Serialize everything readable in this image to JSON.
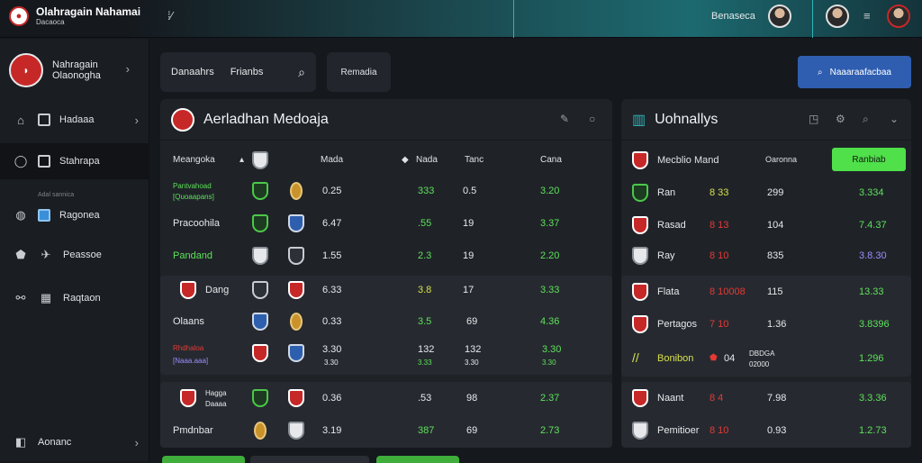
{
  "topbar": {
    "brand_title": "Olahragain Nahamai",
    "brand_sub": "Dacaoca",
    "label": "Benaseca"
  },
  "sidebar": {
    "profile_line1": "Nahragain",
    "profile_line2": "Olaonogha",
    "items": [
      {
        "label": "Hadaaa"
      },
      {
        "label": "Stahrapa"
      },
      {
        "label": "Ragonea",
        "caption": "Adal sannica"
      },
      {
        "label": "Peassoe"
      },
      {
        "label": "Raqtaon"
      },
      {
        "label": "Aonanc"
      }
    ]
  },
  "toolbar": {
    "field1": "Danaahrs",
    "field2": "Frianbs",
    "button_dark": "Remadia",
    "button_blue": "Naaaraafacbaa"
  },
  "left_panel": {
    "title": "Aerladhan Medoaja",
    "columns": [
      "Meangoka",
      "Mada",
      "Nada",
      "Tanc",
      "Cana"
    ],
    "rows": [
      {
        "name": "Pantvahoad",
        "name2": "[Quoaapans]",
        "c1": "0.25",
        "c2": "333",
        "c3": "0.5",
        "c4": "3.20"
      },
      {
        "name": "Pracoohila",
        "c1": "6.47",
        "c2": ".55",
        "c3": "19",
        "c4": "3.37"
      },
      {
        "name": "Pandand",
        "c1": "1.55",
        "c2": "2.3",
        "c3": "19",
        "c4": "2.20"
      },
      {
        "name": "Dang",
        "c1": "6.33",
        "c2": "3.8",
        "c3": "17",
        "c4": "3.33"
      },
      {
        "name": "Olaans",
        "c1": "0.33",
        "c2": "3.5",
        "c3": "69",
        "c4": "4.36"
      },
      {
        "name": "Rhdhaloa",
        "name2": "[Naaa.aaa]",
        "c1": "3.30",
        "c1b": "3.30",
        "c2": "132",
        "c2b": "3.33",
        "c3": "132",
        "c3b": "3.30",
        "c4": "3.30",
        "c4b": "3.30"
      },
      {
        "name": "Hagga",
        "name2": "Daaaa",
        "c1": "0.36",
        "c2": ".53",
        "c3": "98",
        "c4": "2.37"
      },
      {
        "name": "Pmdnbar",
        "c1": "3.19",
        "c2": "387",
        "c3": "69",
        "c4": "2.73"
      }
    ]
  },
  "right_panel": {
    "title": "Uohnallys",
    "columns": [
      "Mecblio Mand",
      "Oaronna"
    ],
    "badge": "Ranbiab",
    "rows": [
      {
        "name": "Ran",
        "num": "8 33",
        "c1": "299",
        "c2": "3.334"
      },
      {
        "name": "Rasad",
        "num": "8 13",
        "c1": "104",
        "c2": "7.4.37"
      },
      {
        "name": "Ray",
        "num": "8 10",
        "c1": "835",
        "c2": "3.8.30"
      },
      {
        "name": "Flata",
        "num": "8 10008",
        "c1": "115",
        "c2": "13.33"
      },
      {
        "name": "Pertagos",
        "num": "7 10",
        "c1": "1.36",
        "c2": "3.8396"
      },
      {
        "name": "Bonibon",
        "num": "04",
        "extra": "DBDGA",
        "extra2": "02000",
        "c1": "",
        "c2": "1.296"
      },
      {
        "name": "Naant",
        "num": "8 4",
        "c1": "7.98",
        "c2": "3.3.36"
      },
      {
        "name": "Pemitioer",
        "num": "8 10",
        "c1": "0.93",
        "c2": "1.2.73"
      }
    ]
  }
}
